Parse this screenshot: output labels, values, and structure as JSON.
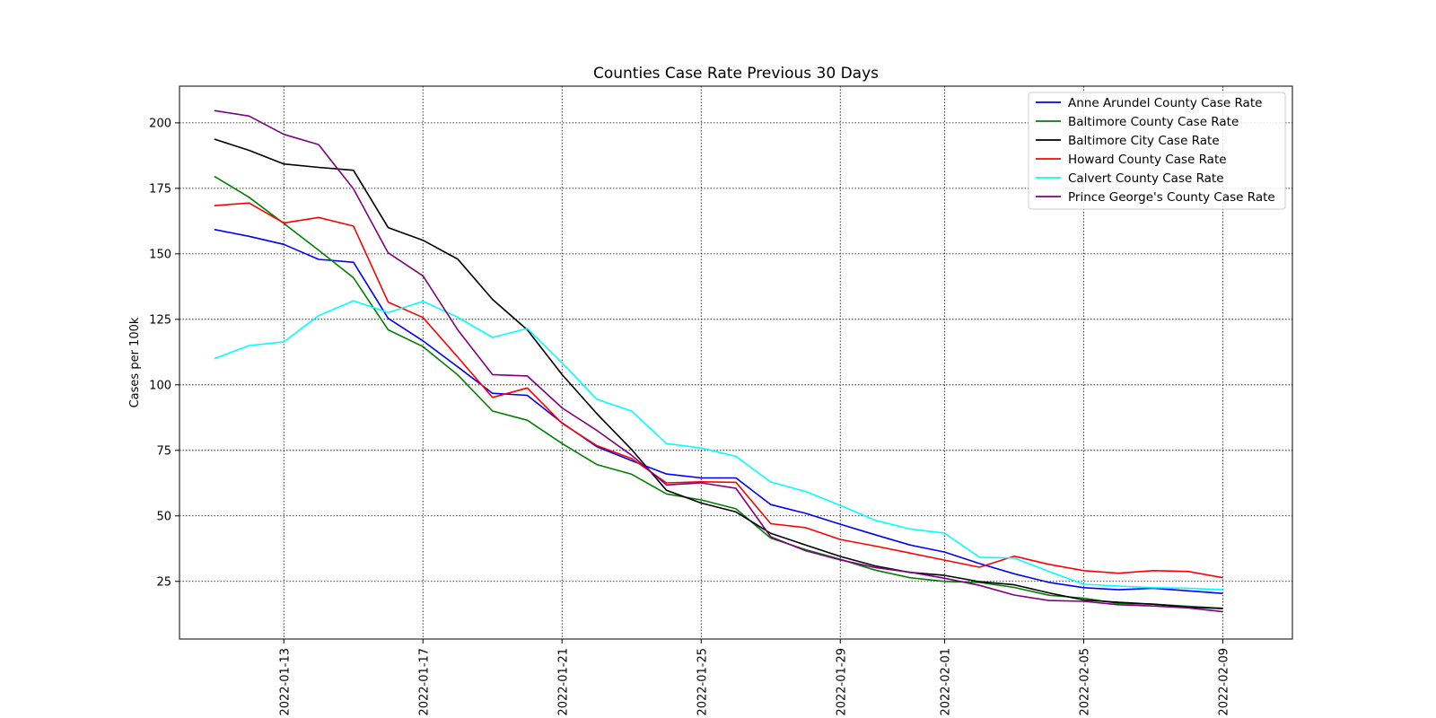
{
  "chart_data": {
    "type": "line",
    "title": "Counties Case Rate Previous 30 Days",
    "xlabel": "",
    "ylabel": "Cases per 100k",
    "x": [
      "2022-01-11",
      "2022-01-12",
      "2022-01-13",
      "2022-01-14",
      "2022-01-15",
      "2022-01-16",
      "2022-01-17",
      "2022-01-18",
      "2022-01-19",
      "2022-01-20",
      "2022-01-21",
      "2022-01-22",
      "2022-01-23",
      "2022-01-24",
      "2022-01-25",
      "2022-01-26",
      "2022-01-27",
      "2022-01-28",
      "2022-01-29",
      "2022-01-30",
      "2022-01-31",
      "2022-02-01",
      "2022-02-02",
      "2022-02-03",
      "2022-02-04",
      "2022-02-05",
      "2022-02-06",
      "2022-02-07",
      "2022-02-08",
      "2022-02-09"
    ],
    "xlim": [
      "2022-01-10",
      "2022-02-11"
    ],
    "xticks": [
      "2022-01-13",
      "2022-01-17",
      "2022-01-21",
      "2022-01-25",
      "2022-01-29",
      "2022-02-01",
      "2022-02-05",
      "2022-02-09"
    ],
    "ylim": [
      3,
      214
    ],
    "yticks": [
      25,
      50,
      75,
      100,
      125,
      150,
      175,
      200
    ],
    "grid": true,
    "legend_position": "top-right",
    "series": [
      {
        "name": "Anne Arundel County Case Rate",
        "color": "#0000ff",
        "values": [
          159.3,
          156.7,
          153.6,
          147.9,
          146.8,
          125.4,
          116.8,
          106.9,
          96.8,
          96.0,
          85.5,
          76.4,
          71.1,
          66.0,
          64.5,
          64.5,
          54.3,
          51.0,
          46.8,
          42.8,
          38.9,
          36.2,
          31.8,
          27.9,
          24.6,
          22.6,
          21.8,
          22.4,
          21.4,
          20.4
        ]
      },
      {
        "name": "Baltimore County Case Rate",
        "color": "#008000",
        "values": [
          179.6,
          171.6,
          161.6,
          151.4,
          140.9,
          121.0,
          114.6,
          103.8,
          90.0,
          86.5,
          77.6,
          69.6,
          65.9,
          58.4,
          56.1,
          52.7,
          41.5,
          37.1,
          33.4,
          29.3,
          26.4,
          25.0,
          24.6,
          22.7,
          19.7,
          18.6,
          16.6,
          16.3,
          15.5,
          14.7
        ]
      },
      {
        "name": "Baltimore City Case Rate",
        "color": "#000000",
        "values": [
          193.8,
          189.5,
          184.3,
          183.0,
          181.9,
          160.0,
          155.2,
          148.0,
          132.6,
          121.0,
          103.9,
          89.0,
          75.3,
          59.8,
          54.9,
          51.5,
          43.3,
          38.9,
          34.5,
          30.9,
          28.4,
          27.3,
          24.9,
          23.7,
          20.6,
          17.9,
          17.0,
          16.3,
          15.2,
          14.6
        ]
      },
      {
        "name": "Howard County Case Rate",
        "color": "#ff0000",
        "values": [
          168.4,
          169.4,
          161.8,
          163.9,
          160.6,
          131.6,
          125.7,
          110.6,
          95.2,
          98.8,
          85.3,
          76.8,
          71.9,
          62.6,
          63.0,
          62.8,
          47.0,
          45.5,
          41.0,
          38.5,
          35.8,
          33.1,
          30.4,
          34.6,
          31.5,
          29.1,
          28.1,
          29.1,
          28.8,
          26.4
        ]
      },
      {
        "name": "Calvert County Case Rate",
        "color": "#00ffff",
        "values": [
          110.0,
          115.0,
          116.4,
          126.4,
          132.1,
          127.6,
          131.9,
          125.8,
          118.1,
          121.5,
          108.4,
          94.5,
          90.0,
          77.6,
          75.9,
          72.7,
          62.9,
          59.3,
          54.0,
          48.3,
          45.0,
          43.4,
          34.2,
          33.9,
          28.8,
          23.9,
          23.2,
          22.6,
          22.4,
          21.8
        ]
      },
      {
        "name": "Prince George's County Case Rate",
        "color": "#800080",
        "values": [
          204.7,
          202.6,
          195.6,
          191.7,
          174.8,
          150.4,
          141.6,
          121.0,
          103.9,
          103.4,
          91.2,
          82.6,
          73.1,
          61.8,
          62.6,
          60.5,
          42.0,
          36.7,
          33.2,
          30.3,
          28.5,
          26.2,
          23.5,
          19.8,
          17.7,
          17.4,
          16.1,
          15.6,
          14.9,
          13.4
        ]
      }
    ]
  }
}
